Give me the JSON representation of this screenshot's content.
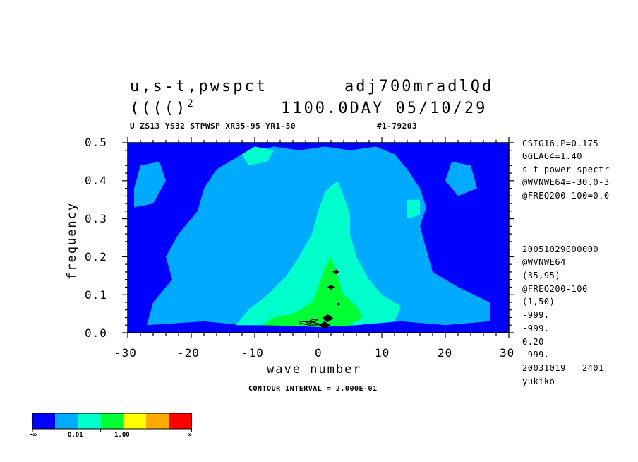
{
  "header": {
    "title_left_1": "u,s-t,pwspct",
    "title_right_1": "adj700mradlQd",
    "title_left_2": "(((()",
    "title_left_2_sup": "2",
    "title_right_2": "1100.0DAY 05/10/29",
    "subtitle": "U ZS13 YS32 STPWSP XR35-95 YR1-50",
    "subtitle_id": "#1-79203"
  },
  "side_info": [
    "CSIG16.P=0.175",
    "GGLA64=1.40",
    "s-t power spectr",
    "@WVNWE64=-30.0-3",
    "@FREQ200-100=0.0",
    "20051029000000",
    "@WVNWE64",
    "(35,95)",
    "@FREQ200-100",
    "(1,50)",
    "-999.",
    "-999.",
    "0.20",
    "-999.",
    "20031019   2401",
    "yukiko"
  ],
  "footer": {
    "contour_interval": "CONTOUR INTERVAL = 2.000E-01"
  },
  "colorbar": {
    "colors": [
      "#0000ff",
      "#00aaff",
      "#00ffcc",
      "#00ff33",
      "#ffff00",
      "#ffaa00",
      "#ff0000"
    ],
    "labels": [
      "-∞",
      "0.01",
      "1.00",
      "∞"
    ]
  },
  "chart_data": {
    "type": "heatmap",
    "xlabel": "wave number",
    "ylabel": "frequency",
    "xlim": [
      -30,
      30
    ],
    "ylim": [
      0.0,
      0.5
    ],
    "x_ticks": [
      "-30",
      "-20",
      "-10",
      "0",
      "10",
      "20",
      "30"
    ],
    "y_ticks": [
      "0.0",
      "0.1",
      "0.2",
      "0.3",
      "0.4",
      "0.5"
    ],
    "levels": [
      "<0.01",
      "0.01-1.00",
      ">1.00"
    ],
    "background_level_color": "#0000ff",
    "regions": [
      {
        "level": "0.01-1.00",
        "color": "#00aaff",
        "points": [
          [
            -27,
            0.02
          ],
          [
            -18,
            0.03
          ],
          [
            -12,
            0.02
          ],
          [
            -6,
            0.02
          ],
          [
            0,
            0.02
          ],
          [
            6,
            0.02
          ],
          [
            13,
            0.03
          ],
          [
            20,
            0.02
          ],
          [
            27,
            0.03
          ],
          [
            27,
            0.08
          ],
          [
            22,
            0.12
          ],
          [
            18,
            0.16
          ],
          [
            17,
            0.22
          ],
          [
            16,
            0.28
          ],
          [
            17,
            0.33
          ],
          [
            16,
            0.38
          ],
          [
            14,
            0.43
          ],
          [
            12,
            0.47
          ],
          [
            9,
            0.49
          ],
          [
            5,
            0.48
          ],
          [
            1,
            0.49
          ],
          [
            -3,
            0.48
          ],
          [
            -7,
            0.49
          ],
          [
            -12,
            0.47
          ],
          [
            -16,
            0.43
          ],
          [
            -18,
            0.38
          ],
          [
            -19,
            0.32
          ],
          [
            -22,
            0.26
          ],
          [
            -24,
            0.2
          ],
          [
            -23,
            0.14
          ],
          [
            -26,
            0.08
          ]
        ]
      },
      {
        "level": "0.01-1.00",
        "color": "#00aaff",
        "points": [
          [
            -29,
            0.33
          ],
          [
            -26,
            0.34
          ],
          [
            -24,
            0.4
          ],
          [
            -25,
            0.45
          ],
          [
            -28,
            0.44
          ],
          [
            -29,
            0.38
          ]
        ]
      },
      {
        "level": "0.01-1.00",
        "color": "#00aaff",
        "points": [
          [
            22,
            0.36
          ],
          [
            25,
            0.38
          ],
          [
            24,
            0.44
          ],
          [
            21,
            0.45
          ],
          [
            20,
            0.4
          ]
        ]
      },
      {
        "level": ">1.00",
        "color": "#00ffcc",
        "points": [
          [
            -13,
            0.02
          ],
          [
            -7,
            0.02
          ],
          [
            0,
            0.015
          ],
          [
            6,
            0.02
          ],
          [
            12,
            0.03
          ],
          [
            13,
            0.07
          ],
          [
            10,
            0.1
          ],
          [
            8,
            0.14
          ],
          [
            6,
            0.2
          ],
          [
            5,
            0.26
          ],
          [
            5,
            0.31
          ],
          [
            4,
            0.36
          ],
          [
            3,
            0.4
          ],
          [
            1,
            0.37
          ],
          [
            0,
            0.32
          ],
          [
            -1,
            0.26
          ],
          [
            -3,
            0.2
          ],
          [
            -5,
            0.15
          ],
          [
            -8,
            0.1
          ],
          [
            -11,
            0.06
          ]
        ]
      },
      {
        "level": ">1.00",
        "color": "#00ffcc",
        "points": [
          [
            -11,
            0.44
          ],
          [
            -8,
            0.45
          ],
          [
            -7,
            0.48
          ],
          [
            -10,
            0.49
          ],
          [
            -12,
            0.47
          ]
        ]
      },
      {
        "level": ">1.00",
        "color": "#00ffcc",
        "points": [
          [
            14,
            0.3
          ],
          [
            16,
            0.31
          ],
          [
            16,
            0.35
          ],
          [
            14,
            0.35
          ]
        ]
      },
      {
        "level": ">1.00",
        "color": "#00ff33",
        "points": [
          [
            -9,
            0.02
          ],
          [
            -4,
            0.018
          ],
          [
            1,
            0.015
          ],
          [
            5,
            0.02
          ],
          [
            7,
            0.04
          ],
          [
            6,
            0.07
          ],
          [
            4,
            0.1
          ],
          [
            3,
            0.15
          ],
          [
            2,
            0.2
          ],
          [
            1,
            0.17
          ],
          [
            0,
            0.12
          ],
          [
            -1,
            0.08
          ],
          [
            -4,
            0.05
          ],
          [
            -7,
            0.04
          ]
        ]
      },
      {
        "level": ">1.00",
        "color": "#00ff33",
        "points": [
          [
            -3,
            0.03
          ],
          [
            0,
            0.03
          ],
          [
            0,
            0.05
          ],
          [
            -2,
            0.05
          ]
        ]
      }
    ],
    "contour_lines": [
      {
        "color": "#000000",
        "points": [
          [
            -3,
            0.03
          ],
          [
            -1,
            0.028
          ],
          [
            0,
            0.024
          ],
          [
            0.3,
            0.021
          ],
          [
            -1.5,
            0.02
          ],
          [
            -3,
            0.026
          ]
        ]
      },
      {
        "color": "#000000",
        "points": [
          [
            -2,
            0.022
          ],
          [
            -0.5,
            0.03
          ],
          [
            0,
            0.036
          ],
          [
            -1,
            0.034
          ],
          [
            -2,
            0.025
          ]
        ]
      }
    ],
    "peaks": [
      {
        "x": 1.0,
        "y": 0.02,
        "color": "#000000",
        "size": "large"
      },
      {
        "x": 1.5,
        "y": 0.038,
        "color": "#000000",
        "size": "large"
      },
      {
        "x": 2.0,
        "y": 0.12,
        "color": "#000000",
        "size": "small"
      },
      {
        "x": 2.8,
        "y": 0.16,
        "color": "#000000",
        "size": "small"
      },
      {
        "x": 3.2,
        "y": 0.075,
        "color": "#000000",
        "size": "tiny"
      }
    ]
  }
}
